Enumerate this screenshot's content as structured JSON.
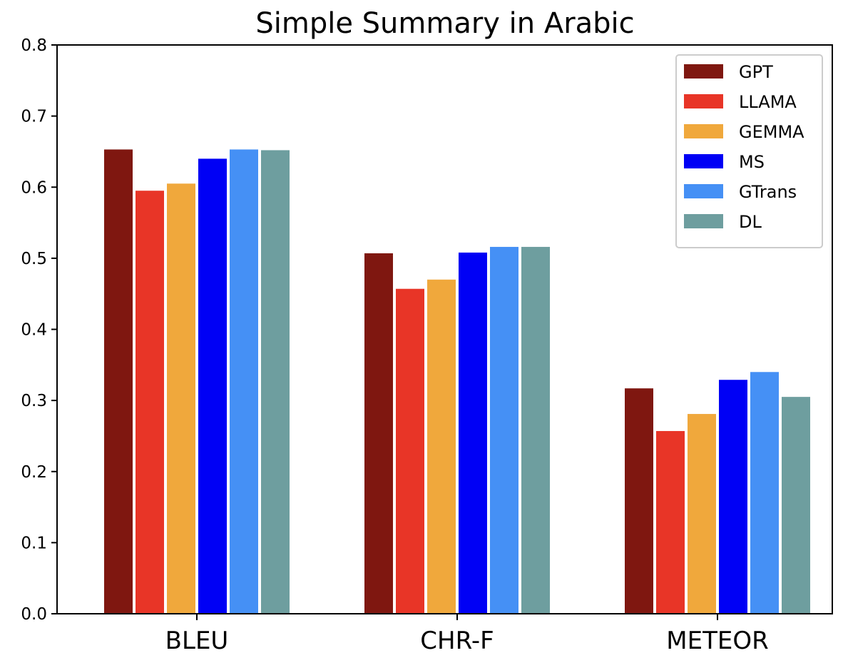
{
  "chart_data": {
    "type": "bar",
    "title": "Simple Summary in Arabic",
    "xlabel": "",
    "ylabel": "",
    "ylim": [
      0,
      0.8
    ],
    "yticks": [
      "0.0",
      "0.1",
      "0.2",
      "0.3",
      "0.4",
      "0.5",
      "0.6",
      "0.7",
      "0.8"
    ],
    "categories": [
      "BLEU",
      "CHR-F",
      "METEOR"
    ],
    "grid": false,
    "legend_position": "top-right",
    "series": [
      {
        "name": "GPT",
        "color": "#7f1710",
        "values": [
          0.653,
          0.507,
          0.317
        ]
      },
      {
        "name": "LLAMA",
        "color": "#e83527",
        "values": [
          0.595,
          0.457,
          0.257
        ]
      },
      {
        "name": "GEMMA",
        "color": "#f0a83c",
        "values": [
          0.605,
          0.47,
          0.281
        ]
      },
      {
        "name": "MS",
        "color": "#0000f5",
        "values": [
          0.64,
          0.508,
          0.329
        ]
      },
      {
        "name": "GTrans",
        "color": "#4590f5",
        "values": [
          0.653,
          0.516,
          0.34
        ]
      },
      {
        "name": "DL",
        "color": "#6e9e9f",
        "values": [
          0.652,
          0.516,
          0.305
        ]
      }
    ]
  }
}
